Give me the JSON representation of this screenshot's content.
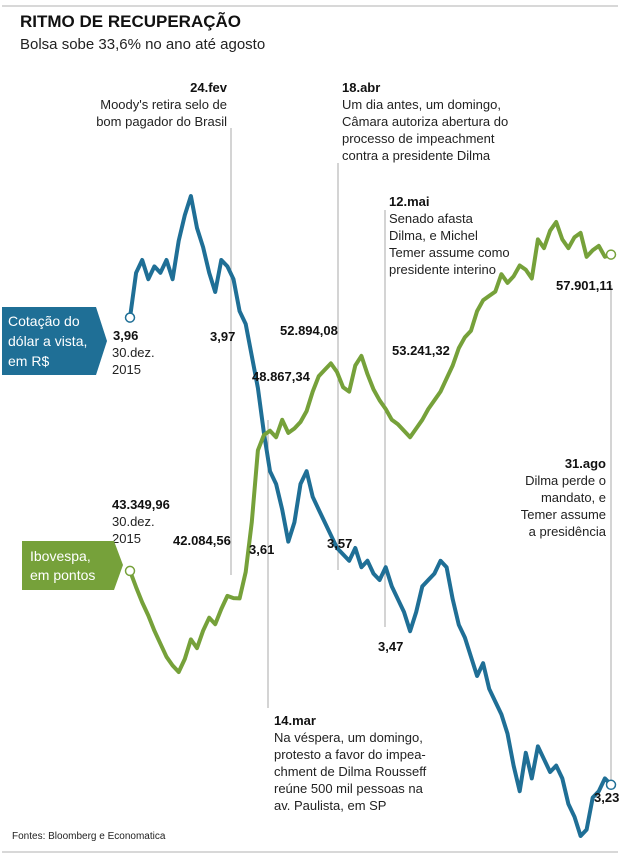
{
  "header": {
    "title": "RITMO DE RECUPERAÇÃO",
    "subtitle": "Bolsa sobe 33,6% no ano até agosto"
  },
  "source": "Fontes: Bloomberg e Economatica",
  "colors": {
    "dolar": "#1f6f96",
    "ibovespa": "#76a13a",
    "guide": "#aaaaaa"
  },
  "series_labels": {
    "dolar": [
      "Cotação do",
      "dólar a vista,",
      "em R$"
    ],
    "ibovespa": [
      "Ibovespa,",
      "em pontos"
    ]
  },
  "events": [
    {
      "date": "24.fev",
      "lines": [
        "Moody's retira selo de",
        "bom pagador do Brasil"
      ]
    },
    {
      "date": "14.mar",
      "lines": [
        "Na véspera, um domingo,",
        "protesto a favor do impea-",
        "chment de Dilma Rousseff",
        "reúne 500 mil pessoas na",
        "av. Paulista, em SP"
      ]
    },
    {
      "date": "18.abr",
      "lines": [
        "Um dia antes, um domingo,",
        "Câmara autoriza abertura do",
        "processo de impeachment",
        "contra a presidente Dilma"
      ]
    },
    {
      "date": "12.mai",
      "lines": [
        "Senado afasta",
        "Dilma, e Michel",
        "Temer assume como",
        "presidente interino"
      ]
    },
    {
      "date": "31.ago",
      "lines": [
        "Dilma perde o",
        "mandato, e",
        "Temer assume",
        "a presidência"
      ]
    }
  ],
  "start_note": [
    "30.dez.",
    "2015"
  ],
  "chart_data": {
    "type": "line",
    "title": "RITMO DE RECUPERAÇÃO",
    "subtitle": "Bolsa sobe 33,6% no ano até agosto",
    "series": [
      {
        "name": "Cotação do dólar a vista, em R$",
        "key": "dolar",
        "unit": "R$",
        "labeled_points": [
          {
            "date": "30.dez.2015",
            "value": 3.96,
            "label": "3,96"
          },
          {
            "date": "24.fev",
            "value": 3.97,
            "label": "3,97"
          },
          {
            "date": "14.mar",
            "value": 3.61,
            "label": "3,61"
          },
          {
            "date": "18.abr",
            "value": 3.57,
            "label": "3,57"
          },
          {
            "date": "12.mai",
            "value": 3.47,
            "label": "3,47"
          },
          {
            "date": "31.ago",
            "value": 3.23,
            "label": "3,23"
          }
        ],
        "values": [
          3.96,
          4.03,
          4.05,
          4.02,
          4.04,
          4.03,
          4.05,
          4.02,
          4.08,
          4.12,
          4.15,
          4.1,
          4.07,
          4.03,
          4.0,
          4.05,
          4.04,
          4.02,
          3.97,
          3.95,
          3.9,
          3.85,
          3.78,
          3.72,
          3.7,
          3.66,
          3.61,
          3.64,
          3.7,
          3.72,
          3.68,
          3.66,
          3.64,
          3.62,
          3.6,
          3.59,
          3.58,
          3.6,
          3.57,
          3.58,
          3.56,
          3.55,
          3.57,
          3.54,
          3.52,
          3.5,
          3.47,
          3.5,
          3.54,
          3.55,
          3.56,
          3.58,
          3.57,
          3.52,
          3.48,
          3.46,
          3.43,
          3.4,
          3.42,
          3.38,
          3.36,
          3.34,
          3.31,
          3.26,
          3.22,
          3.28,
          3.24,
          3.29,
          3.27,
          3.25,
          3.26,
          3.24,
          3.2,
          3.18,
          3.15,
          3.16,
          3.21,
          3.22,
          3.24,
          3.23
        ]
      },
      {
        "name": "Ibovespa, em pontos",
        "key": "ibovespa",
        "unit": "pontos",
        "labeled_points": [
          {
            "date": "30.dez.2015",
            "value": 43349.96,
            "label": "43.349,96"
          },
          {
            "date": "24.fev",
            "value": 42084.56,
            "label": "42.084,56"
          },
          {
            "date": "14.mar",
            "value": 48867.34,
            "label": "48.867,34"
          },
          {
            "date": "18.abr",
            "value": 52894.08,
            "label": "52.894,08"
          },
          {
            "date": "12.mai",
            "value": 53241.32,
            "label": "53.241,32"
          },
          {
            "date": "31.ago",
            "value": 57901.11,
            "label": "57.901,11"
          }
        ],
        "values": [
          43350,
          42600,
          41900,
          41300,
          40600,
          40000,
          39400,
          39000,
          38700,
          39300,
          40200,
          39800,
          40600,
          41200,
          40900,
          41600,
          42200,
          42100,
          42084,
          43300,
          45600,
          48900,
          49600,
          49800,
          49500,
          50300,
          49700,
          49900,
          50200,
          50700,
          51600,
          52300,
          52600,
          52894,
          52500,
          51800,
          51600,
          52800,
          53241,
          52400,
          51700,
          51200,
          50800,
          50300,
          50100,
          49800,
          49500,
          49900,
          50300,
          50800,
          51200,
          51600,
          52200,
          52800,
          53600,
          54100,
          54400,
          55300,
          55800,
          56000,
          56200,
          57000,
          56600,
          56900,
          57400,
          57200,
          56800,
          58600,
          58200,
          59000,
          59400,
          58600,
          58200,
          58700,
          58900,
          57800,
          58100,
          58300,
          57800,
          57901
        ]
      }
    ],
    "x_labels_shown": [
      "30.dez.2015",
      "24.fev",
      "14.mar",
      "18.abr",
      "12.mai",
      "31.ago"
    ],
    "grid": false,
    "legend": "boxes at left"
  }
}
